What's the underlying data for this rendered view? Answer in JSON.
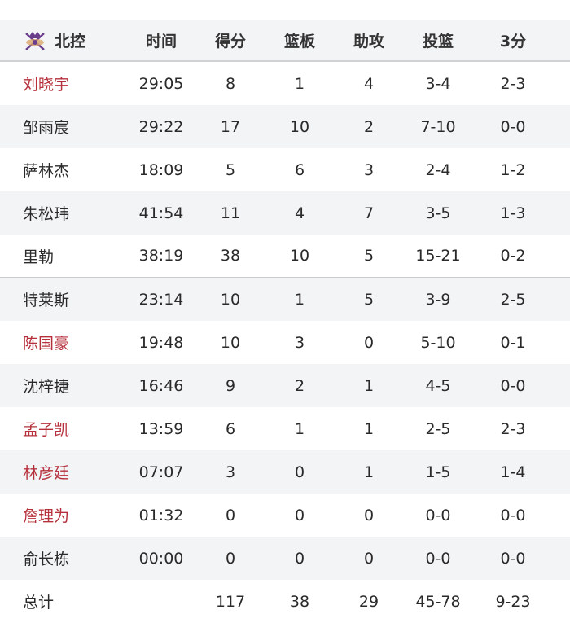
{
  "header": {
    "team": "北控",
    "logo_icon": "beikong-team-logo",
    "columns": [
      "时间",
      "得分",
      "篮板",
      "助攻",
      "投篮",
      "3分"
    ]
  },
  "colors": {
    "highlight_name": "#b6303c",
    "row_alt": "#f3f4f6"
  },
  "players": [
    {
      "name": "刘晓宇",
      "highlight": true,
      "stats": [
        "29:05",
        "8",
        "1",
        "4",
        "3-4",
        "2-3"
      ]
    },
    {
      "name": "邹雨宸",
      "highlight": false,
      "stats": [
        "29:22",
        "17",
        "10",
        "2",
        "7-10",
        "0-0"
      ]
    },
    {
      "name": "萨林杰",
      "highlight": false,
      "stats": [
        "18:09",
        "5",
        "6",
        "3",
        "2-4",
        "1-2"
      ]
    },
    {
      "name": "朱松玮",
      "highlight": false,
      "stats": [
        "41:54",
        "11",
        "4",
        "7",
        "3-5",
        "1-3"
      ]
    },
    {
      "name": "里勒",
      "highlight": false,
      "stats": [
        "38:19",
        "38",
        "10",
        "5",
        "15-21",
        "0-2"
      ]
    },
    {
      "name": "特莱斯",
      "highlight": false,
      "stats": [
        "23:14",
        "10",
        "1",
        "5",
        "3-9",
        "2-5"
      ]
    },
    {
      "name": "陈国豪",
      "highlight": true,
      "stats": [
        "19:48",
        "10",
        "3",
        "0",
        "5-10",
        "0-1"
      ]
    },
    {
      "name": "沈梓捷",
      "highlight": false,
      "stats": [
        "16:46",
        "9",
        "2",
        "1",
        "4-5",
        "0-0"
      ]
    },
    {
      "name": "孟子凯",
      "highlight": true,
      "stats": [
        "13:59",
        "6",
        "1",
        "1",
        "2-5",
        "2-3"
      ]
    },
    {
      "name": "林彦廷",
      "highlight": true,
      "stats": [
        "07:07",
        "3",
        "0",
        "1",
        "1-5",
        "1-4"
      ]
    },
    {
      "name": "詹理为",
      "highlight": true,
      "stats": [
        "01:32",
        "0",
        "0",
        "0",
        "0-0",
        "0-0"
      ]
    },
    {
      "name": "俞长栋",
      "highlight": false,
      "stats": [
        "00:00",
        "0",
        "0",
        "0",
        "0-0",
        "0-0"
      ]
    }
  ],
  "totals": {
    "label": "总计",
    "stats": [
      "",
      "117",
      "38",
      "29",
      "45-78",
      "9-23"
    ]
  }
}
